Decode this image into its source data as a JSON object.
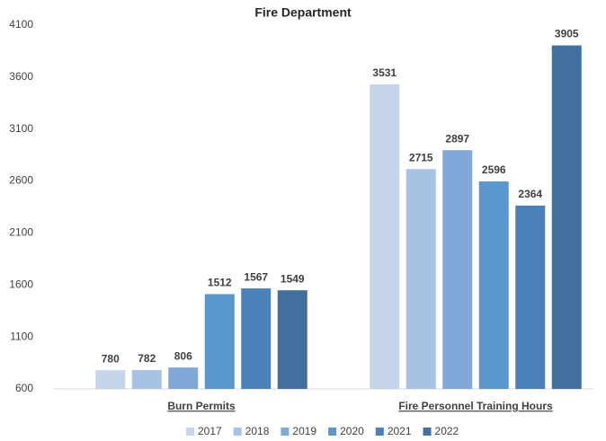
{
  "chart_data": {
    "type": "bar",
    "title": "Fire Department",
    "categories": [
      "Burn Permits",
      "Fire Personnel Training Hours"
    ],
    "series": [
      {
        "name": "2017",
        "color": "#c5d5ec",
        "values": [
          780,
          3531
        ]
      },
      {
        "name": "2018",
        "color": "#a8c2e4",
        "values": [
          782,
          2715
        ]
      },
      {
        "name": "2019",
        "color": "#80a9da",
        "values": [
          806,
          2897
        ]
      },
      {
        "name": "2020",
        "color": "#5b97cf",
        "values": [
          1512,
          2596
        ]
      },
      {
        "name": "2021",
        "color": "#4a81b8",
        "values": [
          1567,
          2364
        ]
      },
      {
        "name": "2022",
        "color": "#41709e",
        "values": [
          1549,
          3905
        ]
      }
    ],
    "ylim": [
      600,
      4100
    ],
    "yticks": [
      600,
      1100,
      1600,
      2100,
      2600,
      3100,
      3600,
      4100
    ],
    "grid": false,
    "legend": "bottom"
  }
}
